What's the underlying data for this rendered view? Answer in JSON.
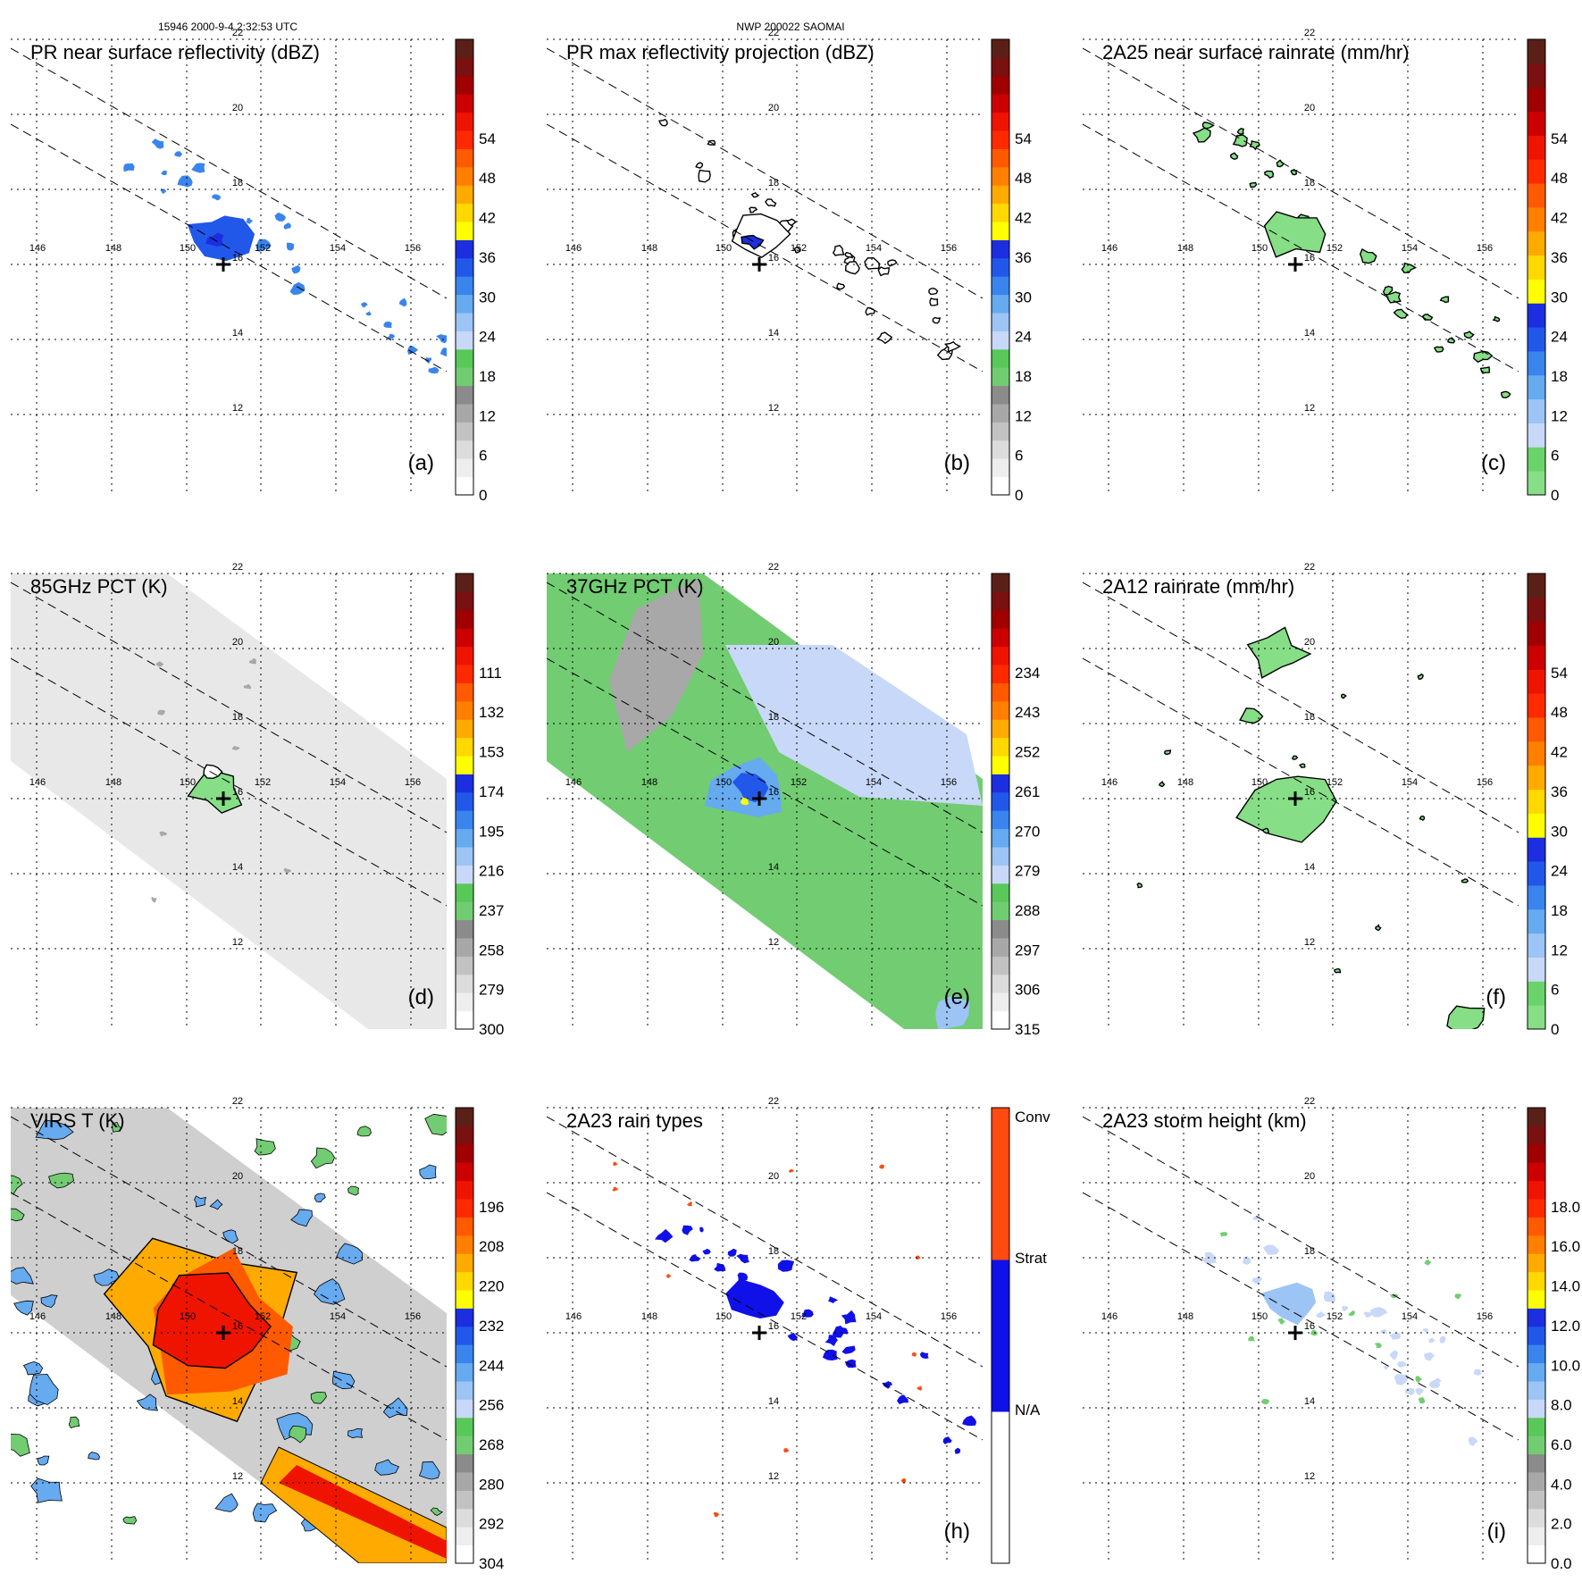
{
  "header": {
    "left": "15946 2000-9-4 2:32:53 UTC",
    "center": "NWP 200022 SAOMAI"
  },
  "chart_data": [
    {
      "type": "heatmap",
      "id": "a",
      "label": "(a)",
      "title": "PR near surface reflectivity (dBZ)",
      "swath": "narrow",
      "data_style": "sparse",
      "lon_ticks": [
        "146",
        "148",
        "150",
        "152",
        "154",
        "156"
      ],
      "lat_ticks": [
        "22",
        "20",
        "18",
        "16",
        "14",
        "12"
      ],
      "colorbar": {
        "ticks": [
          "0",
          "6",
          "12",
          "18",
          "24",
          "30",
          "36",
          "42",
          "48",
          "54"
        ],
        "colors": [
          "#ffffff",
          "#eeeeee",
          "#dcdcdc",
          "#c2c2c2",
          "#a8a8a8",
          "#8b8b8b",
          "#72cc72",
          "#58c858",
          "#c8d8f8",
          "#9cc4f4",
          "#66aaf0",
          "#3a84ee",
          "#2158ea",
          "#1c2ee0",
          "#ffff00",
          "#ffd800",
          "#ffaa00",
          "#ff8000",
          "#ff5a00",
          "#ff2a00",
          "#ee1400",
          "#cc0000",
          "#a00000",
          "#7a1010",
          "#5a2018"
        ]
      }
    },
    {
      "type": "heatmap",
      "id": "b",
      "label": "(b)",
      "title": "PR max reflectivity projection (dBZ)",
      "swath": "narrow",
      "data_style": "contour",
      "lon_ticks": [
        "146",
        "148",
        "150",
        "152",
        "154",
        "156"
      ],
      "lat_ticks": [
        "22",
        "20",
        "18",
        "16",
        "14",
        "12"
      ],
      "colorbar": {
        "ticks": [
          "0",
          "6",
          "12",
          "18",
          "24",
          "30",
          "36",
          "42",
          "48",
          "54"
        ],
        "colors": [
          "#ffffff",
          "#eeeeee",
          "#dcdcdc",
          "#c2c2c2",
          "#a8a8a8",
          "#8b8b8b",
          "#72cc72",
          "#58c858",
          "#c8d8f8",
          "#9cc4f4",
          "#66aaf0",
          "#3a84ee",
          "#2158ea",
          "#1c2ee0",
          "#ffff00",
          "#ffd800",
          "#ffaa00",
          "#ff8000",
          "#ff5a00",
          "#ff2a00",
          "#ee1400",
          "#cc0000",
          "#a00000",
          "#7a1010",
          "#5a2018"
        ]
      }
    },
    {
      "type": "heatmap",
      "id": "c",
      "label": "(c)",
      "title": "2A25 near surface rainrate (mm/hr)",
      "swath": "narrow",
      "data_style": "green",
      "lon_ticks": [
        "146",
        "148",
        "150",
        "152",
        "154",
        "156"
      ],
      "lat_ticks": [
        "22",
        "20",
        "18",
        "16",
        "14",
        "12"
      ],
      "colorbar": {
        "ticks": [
          "0",
          "6",
          "12",
          "18",
          "24",
          "30",
          "36",
          "42",
          "48",
          "54"
        ],
        "colors": [
          "#86de86",
          "#6ad46a",
          "#c8d8f8",
          "#9cc4f4",
          "#66aaf0",
          "#3a84ee",
          "#2158ea",
          "#1c2ee0",
          "#ffff00",
          "#ffd800",
          "#ffaa00",
          "#ff8000",
          "#ff5a00",
          "#ff2a00",
          "#ee1400",
          "#cc0000",
          "#a00000",
          "#7a1010",
          "#5a2018"
        ]
      }
    },
    {
      "type": "heatmap",
      "id": "d",
      "label": "(d)",
      "title": "85GHz PCT (K)",
      "swath": "wide",
      "fill": "#e8e8e8",
      "data_style": "pct85",
      "lon_ticks": [
        "146",
        "148",
        "150",
        "152",
        "154",
        "156"
      ],
      "lat_ticks": [
        "22",
        "20",
        "18",
        "16",
        "14",
        "12"
      ],
      "colorbar": {
        "ticks": [
          "300",
          "279",
          "258",
          "237",
          "216",
          "195",
          "174",
          "153",
          "132",
          "111"
        ],
        "colors": [
          "#ffffff",
          "#eeeeee",
          "#dcdcdc",
          "#c2c2c2",
          "#a8a8a8",
          "#8b8b8b",
          "#72cc72",
          "#58c858",
          "#c8d8f8",
          "#9cc4f4",
          "#66aaf0",
          "#3a84ee",
          "#2158ea",
          "#1c2ee0",
          "#ffff00",
          "#ffd800",
          "#ffaa00",
          "#ff8000",
          "#ff5a00",
          "#ff2a00",
          "#ee1400",
          "#cc0000",
          "#a00000",
          "#7a1010",
          "#5a2018"
        ]
      }
    },
    {
      "type": "heatmap",
      "id": "e",
      "label": "(e)",
      "title": "37GHz PCT (K)",
      "swath": "wide",
      "fill": "#72cc72",
      "data_style": "pct37",
      "lon_ticks": [
        "146",
        "148",
        "150",
        "152",
        "154",
        "156"
      ],
      "lat_ticks": [
        "22",
        "20",
        "18",
        "16",
        "14",
        "12"
      ],
      "colorbar": {
        "ticks": [
          "315",
          "306",
          "297",
          "288",
          "279",
          "270",
          "261",
          "252",
          "243",
          "234"
        ],
        "colors": [
          "#ffffff",
          "#eeeeee",
          "#dcdcdc",
          "#c2c2c2",
          "#a8a8a8",
          "#8b8b8b",
          "#72cc72",
          "#58c858",
          "#c8d8f8",
          "#9cc4f4",
          "#66aaf0",
          "#3a84ee",
          "#2158ea",
          "#1c2ee0",
          "#ffff00",
          "#ffd800",
          "#ffaa00",
          "#ff8000",
          "#ff5a00",
          "#ff2a00",
          "#ee1400",
          "#cc0000",
          "#a00000",
          "#7a1010",
          "#5a2018"
        ]
      }
    },
    {
      "type": "heatmap",
      "id": "f",
      "label": "(f)",
      "title": "2A12 rainrate (mm/hr)",
      "swath": "narrow",
      "data_style": "green_big",
      "lon_ticks": [
        "146",
        "148",
        "150",
        "152",
        "154",
        "156"
      ],
      "lat_ticks": [
        "22",
        "20",
        "18",
        "16",
        "14",
        "12"
      ],
      "colorbar": {
        "ticks": [
          "0",
          "6",
          "12",
          "18",
          "24",
          "30",
          "36",
          "42",
          "48",
          "54"
        ],
        "colors": [
          "#86de86",
          "#6ad46a",
          "#c8d8f8",
          "#9cc4f4",
          "#66aaf0",
          "#3a84ee",
          "#2158ea",
          "#1c2ee0",
          "#ffff00",
          "#ffd800",
          "#ffaa00",
          "#ff8000",
          "#ff5a00",
          "#ff2a00",
          "#ee1400",
          "#cc0000",
          "#a00000",
          "#7a1010",
          "#5a2018"
        ]
      }
    },
    {
      "type": "heatmap",
      "id": "g",
      "label": "",
      "title": "VIRS T (K)",
      "swath": "wide",
      "fill": "#cfcfcf",
      "data_style": "virs",
      "lon_ticks": [
        "146",
        "148",
        "150",
        "152",
        "154",
        "156"
      ],
      "lat_ticks": [
        "22",
        "20",
        "18",
        "16",
        "14",
        "12"
      ],
      "colorbar": {
        "ticks": [
          "304",
          "292",
          "280",
          "268",
          "256",
          "244",
          "232",
          "220",
          "208",
          "196"
        ],
        "colors": [
          "#ffffff",
          "#eeeeee",
          "#dcdcdc",
          "#c2c2c2",
          "#a8a8a8",
          "#8b8b8b",
          "#72cc72",
          "#58c858",
          "#c8d8f8",
          "#9cc4f4",
          "#66aaf0",
          "#3a84ee",
          "#2158ea",
          "#1c2ee0",
          "#ffff00",
          "#ffd800",
          "#ffaa00",
          "#ff8000",
          "#ff5a00",
          "#ff2a00",
          "#ee1400",
          "#cc0000",
          "#a00000",
          "#7a1010",
          "#5a2018"
        ]
      }
    },
    {
      "type": "heatmap",
      "id": "h",
      "label": "(h)",
      "title": "2A23 rain types",
      "swath": "narrow",
      "data_style": "raintype",
      "lon_ticks": [
        "146",
        "148",
        "150",
        "152",
        "154",
        "156"
      ],
      "lat_ticks": [
        "22",
        "20",
        "18",
        "16",
        "14",
        "12"
      ],
      "colorbar": {
        "categorical": true,
        "ticks": [
          "N/A",
          "Strat",
          "Conv"
        ],
        "colors": [
          "#ffffff",
          "#1010e8",
          "#ff4a10"
        ]
      }
    },
    {
      "type": "heatmap",
      "id": "i",
      "label": "(i)",
      "title": "2A23 storm height (km)",
      "swath": "narrow",
      "data_style": "height",
      "lon_ticks": [
        "146",
        "148",
        "150",
        "152",
        "154",
        "156"
      ],
      "lat_ticks": [
        "22",
        "20",
        "18",
        "16",
        "14",
        "12"
      ],
      "colorbar": {
        "ticks": [
          "0.0",
          "2.0",
          "4.0",
          "6.0",
          "8.0",
          "10.0",
          "12.0",
          "14.0",
          "16.0",
          "18.0"
        ],
        "colors": [
          "#ffffff",
          "#eeeeee",
          "#dcdcdc",
          "#c2c2c2",
          "#a8a8a8",
          "#8b8b8b",
          "#72cc72",
          "#58c858",
          "#c8d8f8",
          "#9cc4f4",
          "#66aaf0",
          "#3a84ee",
          "#2158ea",
          "#1c2ee0",
          "#ffff00",
          "#ffd800",
          "#ffaa00",
          "#ff8000",
          "#ff5a00",
          "#ff2a00",
          "#ee1400",
          "#cc0000",
          "#a00000",
          "#7a1010",
          "#5a2018"
        ]
      }
    }
  ]
}
